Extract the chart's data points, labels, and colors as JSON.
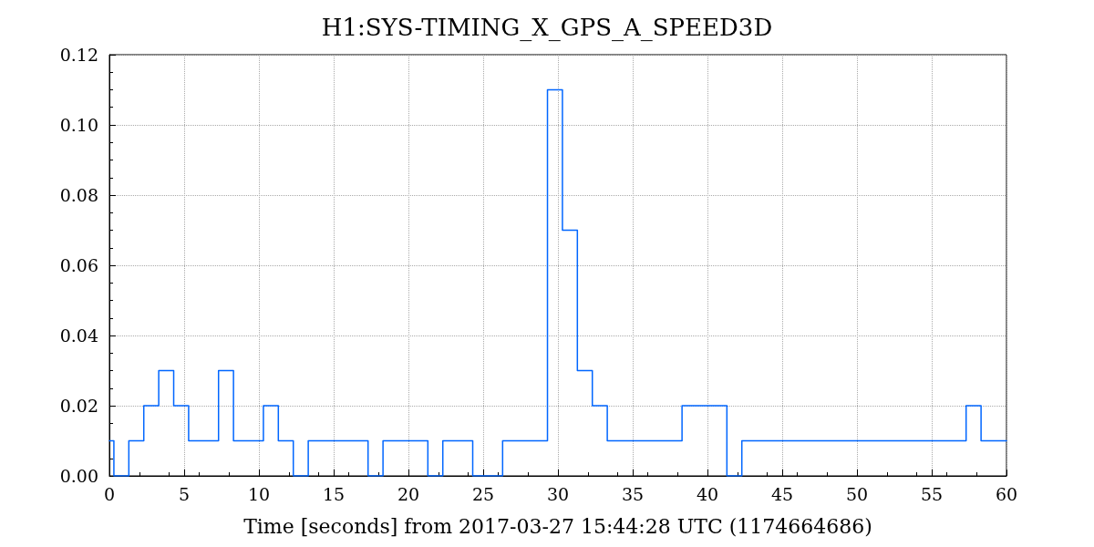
{
  "chart_data": {
    "type": "step",
    "title": "H1:SYS-TIMING_X_GPS_A_SPEED3D",
    "xlabel": "Time [seconds] from 2017-03-27 15:44:28 UTC (1174664686)",
    "x": [
      0,
      0.3,
      1.3,
      2.3,
      3.3,
      4.3,
      5.3,
      7.3,
      8.3,
      10.3,
      11.3,
      12.3,
      13.3,
      17.3,
      18.3,
      21.3,
      22.3,
      24.3,
      26.3,
      29.3,
      30.3,
      31.3,
      32.3,
      33.3,
      38.3,
      41.3,
      42.3,
      57.3,
      58.3,
      60
    ],
    "series": [
      {
        "color": "#0066ff",
        "values": [
          0.01,
          0,
          0.01,
          0.02,
          0.03,
          0.02,
          0.01,
          0.03,
          0.01,
          0.02,
          0.01,
          0,
          0.01,
          0,
          0.01,
          0,
          0.01,
          0,
          0.01,
          0.11,
          0.07,
          0.03,
          0.02,
          0.01,
          0.02,
          0,
          0.01,
          0.02,
          0.01,
          0.01
        ]
      }
    ],
    "xlim": [
      0,
      60
    ],
    "xticks": [
      0,
      5,
      10,
      15,
      20,
      25,
      30,
      35,
      40,
      45,
      50,
      55,
      60
    ],
    "ylim": [
      0,
      0.12
    ],
    "yticks": [
      {
        "value": 0,
        "label": "0.00"
      },
      {
        "value": 0.02,
        "label": "0.02"
      },
      {
        "value": 0.04,
        "label": "0.04"
      },
      {
        "value": 0.06,
        "label": "0.06"
      },
      {
        "value": 0.08,
        "label": "0.08"
      },
      {
        "value": 0.1,
        "label": "0.10"
      },
      {
        "value": 0.12,
        "label": "0.12"
      }
    ],
    "grid": true,
    "marker": "none",
    "line_style": "solid"
  }
}
